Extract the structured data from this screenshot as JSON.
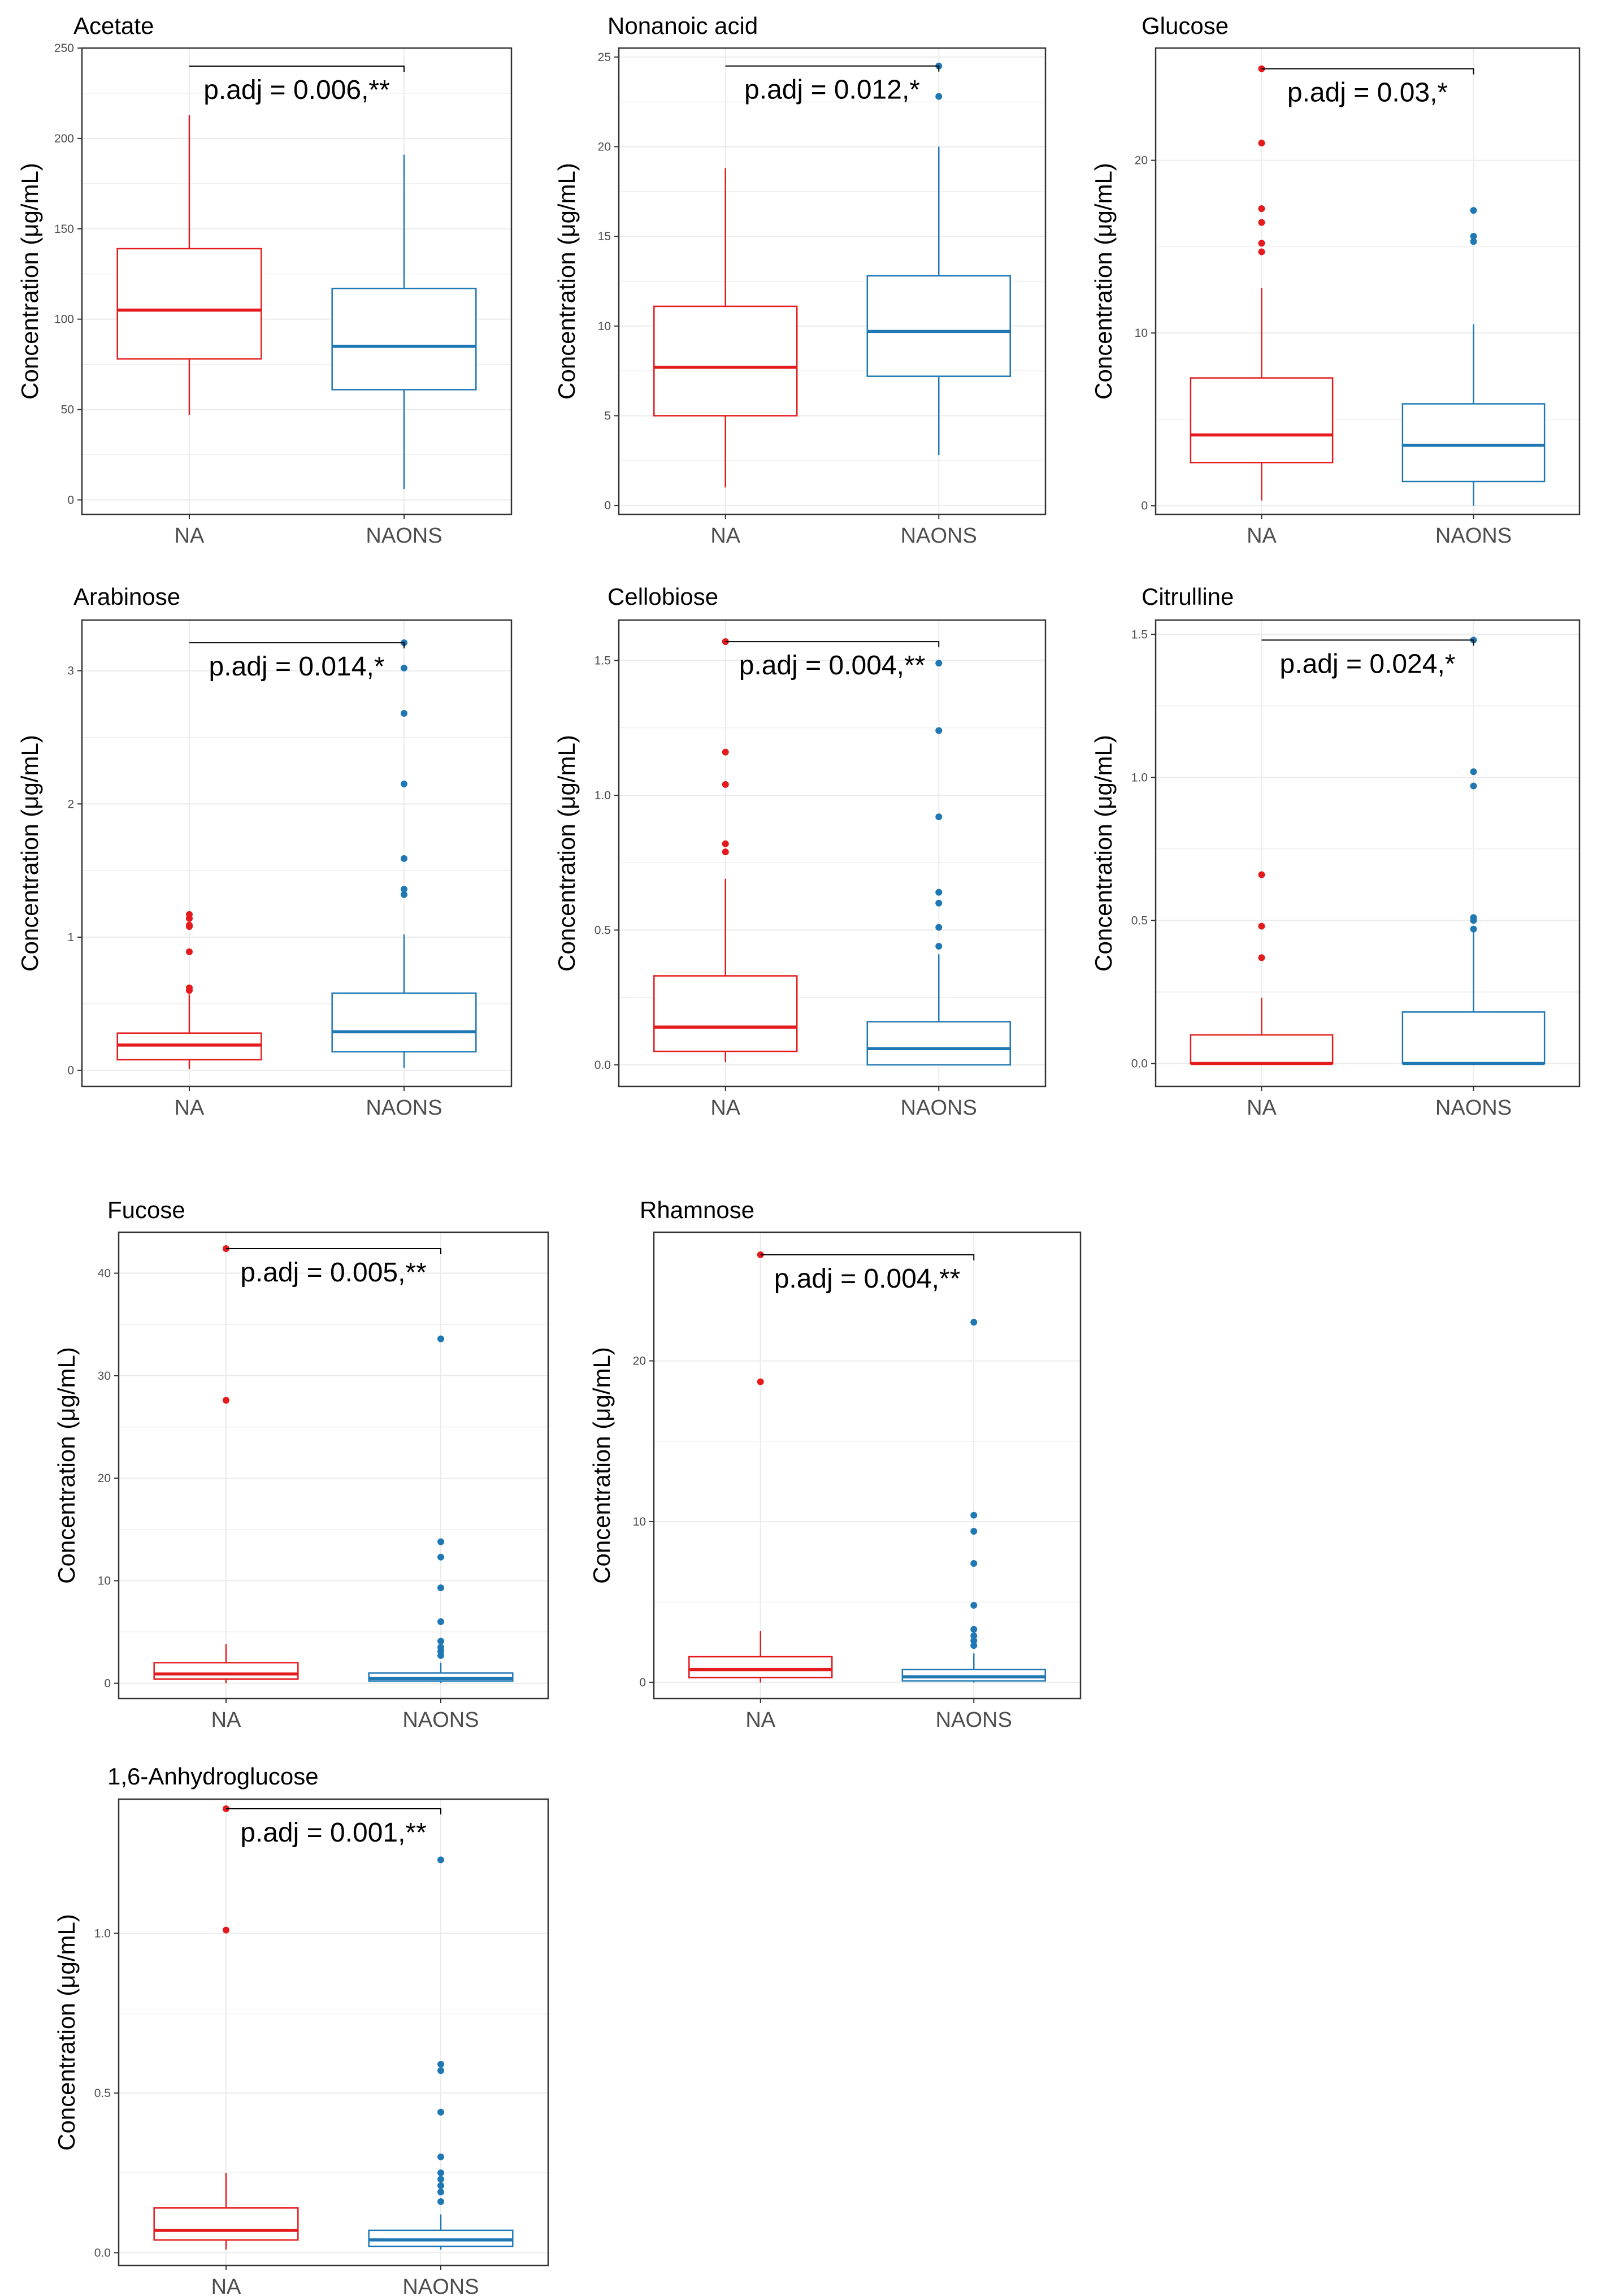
{
  "figure": {
    "background": "#ffffff",
    "panel_background": "#ffffff",
    "grid_color": "#ebebeb",
    "panel_border": "#333333",
    "group_colors": {
      "NA": "#e41a1c",
      "NAONS": "#1f78b4"
    },
    "y_axis_label": "Concentration (μg/mL)"
  },
  "chart_data": [
    {
      "type": "boxplot",
      "title": "Acetate",
      "xlabel": "",
      "ylabel": "Concentration (μg/mL)",
      "categories": [
        "NA",
        "NAONS"
      ],
      "ylim": [
        -8,
        250
      ],
      "yticks": [
        0,
        50,
        100,
        150,
        200,
        250
      ],
      "yticklabels": [
        "0",
        "50",
        "100",
        "150",
        "200",
        "250"
      ],
      "grid": true,
      "boxes": [
        {
          "group": "NA",
          "min": 47,
          "q1": 78,
          "median": 105,
          "q3": 139,
          "max": 213,
          "outliers": []
        },
        {
          "group": "NAONS",
          "min": 6,
          "q1": 61,
          "median": 85,
          "q3": 117,
          "max": 191,
          "outliers": []
        }
      ],
      "significance": {
        "label": "p.adj = 0.006,**",
        "y": 240
      }
    },
    {
      "type": "boxplot",
      "title": "Nonanoic acid",
      "xlabel": "",
      "ylabel": "Concentration (μg/mL)",
      "categories": [
        "NA",
        "NAONS"
      ],
      "ylim": [
        -0.5,
        25.5
      ],
      "yticks": [
        0,
        5,
        10,
        15,
        20,
        25
      ],
      "yticklabels": [
        "0",
        "5",
        "10",
        "15",
        "20",
        "25"
      ],
      "grid": true,
      "boxes": [
        {
          "group": "NA",
          "min": 1,
          "q1": 5,
          "median": 7.7,
          "q3": 11.1,
          "max": 18.8,
          "outliers": []
        },
        {
          "group": "NAONS",
          "min": 2.8,
          "q1": 7.2,
          "median": 9.7,
          "q3": 12.8,
          "max": 20,
          "outliers": [
            22.8,
            24.5
          ]
        }
      ],
      "significance": {
        "label": "p.adj = 0.012,*",
        "y": 24.5
      }
    },
    {
      "type": "boxplot",
      "title": "Glucose",
      "xlabel": "",
      "ylabel": "Concentration (μg/mL)",
      "categories": [
        "NA",
        "NAONS"
      ],
      "ylim": [
        -0.5,
        26.5
      ],
      "yticks": [
        0,
        10,
        20
      ],
      "yticklabels": [
        "0",
        "10",
        "20"
      ],
      "grid": true,
      "boxes": [
        {
          "group": "NA",
          "min": 0.3,
          "q1": 2.5,
          "median": 4.1,
          "q3": 7.4,
          "max": 12.6,
          "outliers": [
            14.7,
            15.2,
            16.4,
            17.2,
            21,
            25.3
          ]
        },
        {
          "group": "NAONS",
          "min": 0,
          "q1": 1.4,
          "median": 3.5,
          "q3": 5.9,
          "max": 10.5,
          "outliers": [
            15.3,
            15.6,
            17.1
          ]
        }
      ],
      "significance": {
        "label": "p.adj = 0.03,*",
        "y": 25.3
      }
    },
    {
      "type": "boxplot",
      "title": "Arabinose",
      "xlabel": "",
      "ylabel": "Concentration (μg/mL)",
      "categories": [
        "NA",
        "NAONS"
      ],
      "ylim": [
        -0.12,
        3.38
      ],
      "yticks": [
        0,
        1,
        2,
        3
      ],
      "yticklabels": [
        "0",
        "1",
        "2",
        "3"
      ],
      "grid": true,
      "boxes": [
        {
          "group": "NA",
          "min": 0.01,
          "q1": 0.08,
          "median": 0.19,
          "q3": 0.28,
          "max": 0.57,
          "outliers": [
            0.6,
            0.62,
            0.89,
            1.08,
            1.09,
            1.14,
            1.17
          ]
        },
        {
          "group": "NAONS",
          "min": 0.02,
          "q1": 0.14,
          "median": 0.29,
          "q3": 0.58,
          "max": 1.02,
          "outliers": [
            1.32,
            1.36,
            1.59,
            2.15,
            2.68,
            3.02,
            3.21
          ]
        }
      ],
      "significance": {
        "label": "p.adj = 0.014,*",
        "y": 3.21
      }
    },
    {
      "type": "boxplot",
      "title": "Cellobiose",
      "xlabel": "",
      "ylabel": "Concentration (μg/mL)",
      "categories": [
        "NA",
        "NAONS"
      ],
      "ylim": [
        -0.08,
        1.65
      ],
      "yticks": [
        0,
        0.5,
        1,
        1.5
      ],
      "yticklabels": [
        "0.0",
        "0.5",
        "1.0",
        "1.5"
      ],
      "grid": true,
      "boxes": [
        {
          "group": "NA",
          "min": 0.01,
          "q1": 0.05,
          "median": 0.14,
          "q3": 0.33,
          "max": 0.69,
          "outliers": [
            0.79,
            0.82,
            1.04,
            1.16,
            1.57
          ]
        },
        {
          "group": "NAONS",
          "min": 0,
          "q1": 0,
          "median": 0.06,
          "q3": 0.16,
          "max": 0.41,
          "outliers": [
            0.44,
            0.51,
            0.6,
            0.64,
            0.92,
            1.24,
            1.49
          ]
        }
      ],
      "significance": {
        "label": "p.adj = 0.004,**",
        "y": 1.57
      }
    },
    {
      "type": "boxplot",
      "title": "Citrulline",
      "xlabel": "",
      "ylabel": "Concentration (μg/mL)",
      "categories": [
        "NA",
        "NAONS"
      ],
      "ylim": [
        -0.08,
        1.55
      ],
      "yticks": [
        0,
        0.5,
        1,
        1.5
      ],
      "yticklabels": [
        "0.0",
        "0.5",
        "1.0",
        "1.5"
      ],
      "grid": true,
      "boxes": [
        {
          "group": "NA",
          "min": 0,
          "q1": 0,
          "median": 0,
          "q3": 0.1,
          "max": 0.23,
          "outliers": [
            0.37,
            0.48,
            0.66
          ]
        },
        {
          "group": "NAONS",
          "min": 0,
          "q1": 0,
          "median": 0,
          "q3": 0.18,
          "max": 0.46,
          "outliers": [
            0.47,
            0.5,
            0.51,
            0.97,
            1.02,
            1.48
          ]
        }
      ],
      "significance": {
        "label": "p.adj = 0.024,*",
        "y": 1.48
      }
    },
    {
      "type": "boxplot",
      "title": "Fucose",
      "xlabel": "",
      "ylabel": "Concentration (μg/mL)",
      "categories": [
        "NA",
        "NAONS"
      ],
      "ylim": [
        -1.5,
        44
      ],
      "yticks": [
        0,
        10,
        20,
        30,
        40
      ],
      "yticklabels": [
        "0",
        "10",
        "20",
        "30",
        "40"
      ],
      "grid": true,
      "boxes": [
        {
          "group": "NA",
          "min": 0,
          "q1": 0.4,
          "median": 0.9,
          "q3": 2,
          "max": 3.8,
          "outliers": [
            27.6,
            42.4
          ]
        },
        {
          "group": "NAONS",
          "min": 0,
          "q1": 0.2,
          "median": 0.45,
          "q3": 1,
          "max": 2,
          "outliers": [
            2.7,
            3.1,
            3.5,
            4.1,
            6,
            9.3,
            12.3,
            13.8,
            33.6
          ]
        }
      ],
      "significance": {
        "label": "p.adj = 0.005,**",
        "y": 42.4
      }
    },
    {
      "type": "boxplot",
      "title": "Rhamnose",
      "xlabel": "",
      "ylabel": "Concentration (μg/mL)",
      "categories": [
        "NA",
        "NAONS"
      ],
      "ylim": [
        -1,
        28
      ],
      "yticks": [
        0,
        10,
        20
      ],
      "yticklabels": [
        "0",
        "10",
        "20"
      ],
      "grid": true,
      "boxes": [
        {
          "group": "NA",
          "min": 0,
          "q1": 0.3,
          "median": 0.8,
          "q3": 1.6,
          "max": 3.2,
          "outliers": [
            18.7,
            26.6
          ]
        },
        {
          "group": "NAONS",
          "min": 0,
          "q1": 0.1,
          "median": 0.35,
          "q3": 0.8,
          "max": 1.8,
          "outliers": [
            2.3,
            2.6,
            2.9,
            3.3,
            4.8,
            7.4,
            9.4,
            10.4,
            22.4
          ]
        }
      ],
      "significance": {
        "label": "p.adj = 0.004,**",
        "y": 26.6
      }
    },
    {
      "type": "boxplot",
      "title": "1,6-Anhydroglucose",
      "xlabel": "",
      "ylabel": "Concentration (μg/mL)",
      "categories": [
        "NA",
        "NAONS"
      ],
      "ylim": [
        -0.04,
        1.42
      ],
      "yticks": [
        0,
        0.5,
        1
      ],
      "yticklabels": [
        "0.0",
        "0.5",
        "1.0"
      ],
      "grid": true,
      "boxes": [
        {
          "group": "NA",
          "min": 0.01,
          "q1": 0.04,
          "median": 0.07,
          "q3": 0.14,
          "max": 0.25,
          "outliers": [
            1.01,
            1.39
          ]
        },
        {
          "group": "NAONS",
          "min": 0.01,
          "q1": 0.02,
          "median": 0.04,
          "q3": 0.07,
          "max": 0.12,
          "outliers": [
            0.16,
            0.19,
            0.21,
            0.23,
            0.25,
            0.3,
            0.44,
            0.57,
            0.59,
            1.23
          ]
        }
      ],
      "significance": {
        "label": "p.adj = 0.001,**",
        "y": 1.39
      }
    }
  ]
}
